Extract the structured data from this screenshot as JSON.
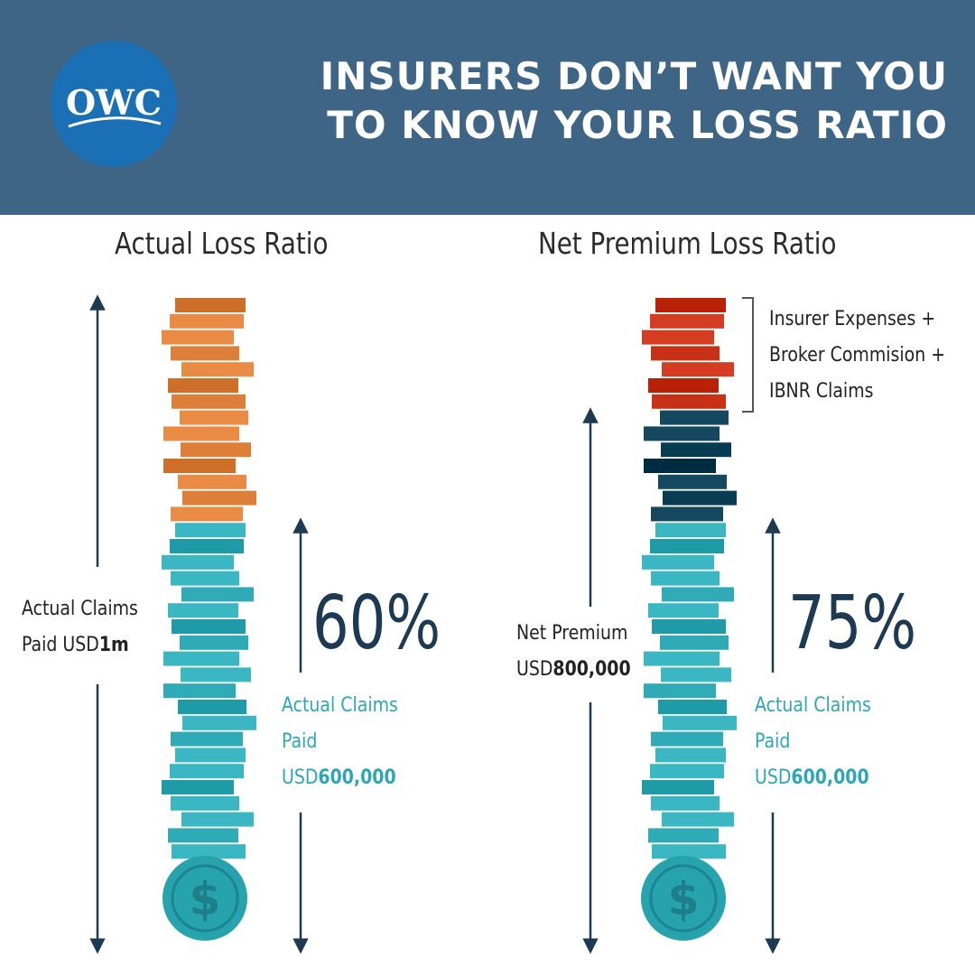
{
  "header": {
    "logo_text": "OWC",
    "title_line1": "INSURERS DON’T WANT YOU",
    "title_line2": "TO KNOW YOUR LOSS RATIO"
  },
  "left_panel": {
    "title": "Actual Loss Ratio",
    "side_label_line1": "Actual Claims",
    "side_label_prefix": "Paid USD",
    "side_label_amount": "1m",
    "percentage": "60%",
    "claims_line1": "Actual Claims",
    "claims_line2": "Paid",
    "claims_prefix": "USD",
    "claims_amount": "600,000",
    "top_stack_color": "#ea8b45",
    "bottom_stack_color": "#3ab7c3"
  },
  "right_panel": {
    "title": "Net Premium Loss Ratio",
    "bracket_line1": "Insurer Expenses +",
    "bracket_line2": "Broker Commision +",
    "bracket_line3": "IBNR Claims",
    "side_label_line1": "Net Premium",
    "side_label_prefix": "USD",
    "side_label_amount": "800,000",
    "percentage": "75%",
    "claims_line1": "Actual Claims",
    "claims_line2": "Paid",
    "claims_prefix": "USD",
    "claims_amount": "600,000",
    "top_stack_color": "#d53d22",
    "middle_stack_color": "#14485e",
    "bottom_stack_color": "#3ab7c3"
  },
  "icons": {
    "coin": "dollar-coin-icon",
    "arrow": "double-headed-arrow-icon",
    "bracket": "bracket-icon"
  }
}
